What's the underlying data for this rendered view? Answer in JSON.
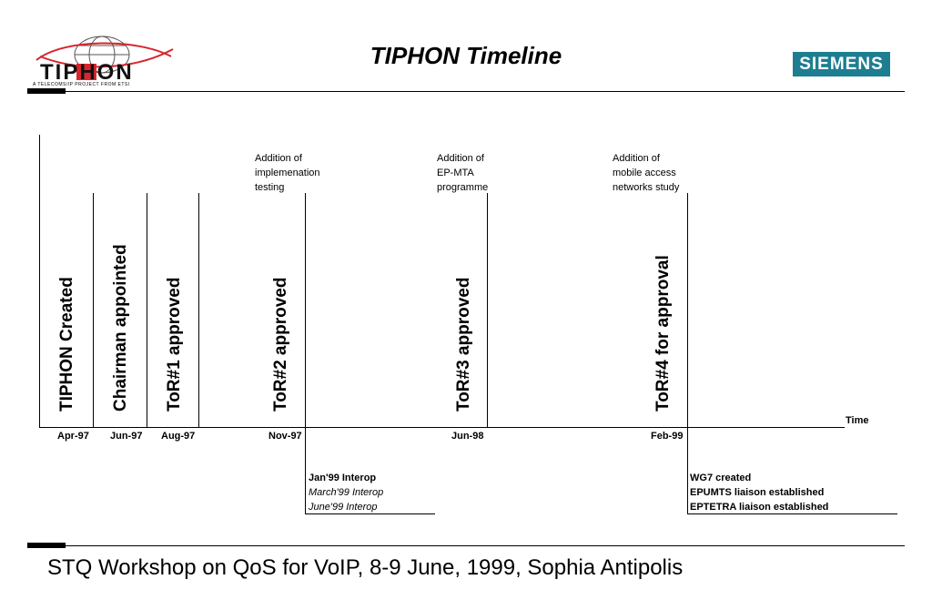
{
  "header": {
    "title": "TIPHON Timeline",
    "logo_text": "TIPHON",
    "logo_tagline": "A TELECOMS/IP PROJECT FROM ETSI",
    "company": "SIEMENS"
  },
  "timeline": {
    "axis_label": "Time",
    "milestones": [
      {
        "date": "Apr-97",
        "label": "TIPHON Created"
      },
      {
        "date": "Jun-97",
        "label": "Chairman appointed"
      },
      {
        "date": "Aug-97",
        "label": "ToR#1 approved"
      },
      {
        "date": "Nov-97",
        "label": "ToR#2 approved",
        "note": [
          "Addition of",
          "implemenation",
          "testing"
        ]
      },
      {
        "date": "Jun-98",
        "label": "ToR#3 approved",
        "note": [
          "Addition of",
          "EP-MTA",
          "programme"
        ]
      },
      {
        "date": "Feb-99",
        "label": "ToR#4 for approval",
        "note": [
          "Addition of",
          "mobile access",
          "networks study"
        ]
      }
    ],
    "interop": [
      "Jan'99 Interop",
      "March'99 Interop",
      "June'99 Interop"
    ],
    "liaison": [
      "WG7 created",
      "EPUMTS liaison established",
      "EPTETRA liaison established"
    ]
  },
  "footer": {
    "text": "STQ Workshop on QoS for VoIP, 8-9 June, 1999, Sophia Antipolis"
  },
  "colors": {
    "siemens_badge": "#1d7e91",
    "logo_red": "#d7262c"
  }
}
